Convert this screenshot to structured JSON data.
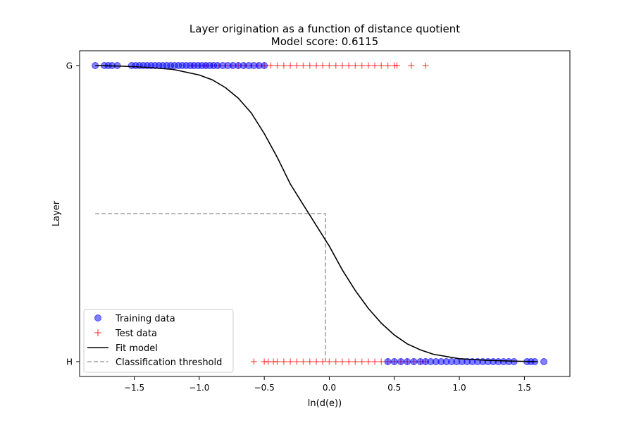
{
  "chart_data": {
    "type": "scatter",
    "title": "Layer origination as a function of distance quotient",
    "subtitle": "Model score: 0.6115",
    "xlabel": "ln(d(e))",
    "ylabel": "Layer",
    "xlim": [
      -1.92,
      1.85
    ],
    "ylim": [
      -0.05,
      1.05
    ],
    "xticks": [
      -1.5,
      -1.0,
      -0.5,
      0.0,
      0.5,
      1.0,
      1.5
    ],
    "xtick_labels": [
      "−1.5",
      "−1.0",
      "−0.5",
      "0.0",
      "0.5",
      "1.0",
      "1.5"
    ],
    "yticks": [
      1,
      0
    ],
    "ytick_labels": [
      "G",
      "H"
    ],
    "grid": false,
    "legend_placement": "lower-left",
    "colors": {
      "training": "#0000ff",
      "test": "#ff0000",
      "fit": "#000000",
      "threshold": "#a0a0a0"
    },
    "series": [
      {
        "name": "Training data",
        "marker": "circle",
        "points": [
          [
            -1.8,
            1
          ],
          [
            -1.73,
            1
          ],
          [
            -1.7,
            1
          ],
          [
            -1.67,
            1
          ],
          [
            -1.63,
            1
          ],
          [
            -1.52,
            1
          ],
          [
            -1.49,
            1
          ],
          [
            -1.46,
            1
          ],
          [
            -1.43,
            1
          ],
          [
            -1.4,
            1
          ],
          [
            -1.37,
            1
          ],
          [
            -1.34,
            1
          ],
          [
            -1.31,
            1
          ],
          [
            -1.28,
            1
          ],
          [
            -1.25,
            1
          ],
          [
            -1.22,
            1
          ],
          [
            -1.19,
            1
          ],
          [
            -1.16,
            1
          ],
          [
            -1.13,
            1
          ],
          [
            -1.1,
            1
          ],
          [
            -1.07,
            1
          ],
          [
            -1.04,
            1
          ],
          [
            -1.01,
            1
          ],
          [
            -0.98,
            1
          ],
          [
            -0.95,
            1
          ],
          [
            -0.92,
            1
          ],
          [
            -0.89,
            1
          ],
          [
            -0.86,
            1
          ],
          [
            -0.82,
            1
          ],
          [
            -0.78,
            1
          ],
          [
            -0.74,
            1
          ],
          [
            -0.7,
            1
          ],
          [
            -0.66,
            1
          ],
          [
            -0.62,
            1
          ],
          [
            -0.58,
            1
          ],
          [
            -0.54,
            1
          ],
          [
            -0.5,
            1
          ],
          [
            0.45,
            0
          ],
          [
            0.5,
            0
          ],
          [
            0.55,
            0
          ],
          [
            0.6,
            0
          ],
          [
            0.65,
            0
          ],
          [
            0.7,
            0
          ],
          [
            0.74,
            0
          ],
          [
            0.78,
            0
          ],
          [
            0.82,
            0
          ],
          [
            0.86,
            0
          ],
          [
            0.9,
            0
          ],
          [
            0.94,
            0
          ],
          [
            0.98,
            0
          ],
          [
            1.02,
            0
          ],
          [
            1.06,
            0
          ],
          [
            1.1,
            0
          ],
          [
            1.14,
            0
          ],
          [
            1.18,
            0
          ],
          [
            1.22,
            0
          ],
          [
            1.26,
            0
          ],
          [
            1.3,
            0
          ],
          [
            1.34,
            0
          ],
          [
            1.38,
            0
          ],
          [
            1.42,
            0
          ],
          [
            1.52,
            0
          ],
          [
            1.55,
            0
          ],
          [
            1.58,
            0
          ],
          [
            1.65,
            0
          ]
        ]
      },
      {
        "name": "Test data",
        "marker": "plus",
        "points": [
          [
            -1.05,
            1
          ],
          [
            -1.0,
            1
          ],
          [
            -0.95,
            1
          ],
          [
            -0.9,
            1
          ],
          [
            -0.85,
            1
          ],
          [
            -0.8,
            1
          ],
          [
            -0.75,
            1
          ],
          [
            -0.7,
            1
          ],
          [
            -0.65,
            1
          ],
          [
            -0.6,
            1
          ],
          [
            -0.55,
            1
          ],
          [
            -0.5,
            1
          ],
          [
            -0.45,
            1
          ],
          [
            -0.4,
            1
          ],
          [
            -0.35,
            1
          ],
          [
            -0.3,
            1
          ],
          [
            -0.25,
            1
          ],
          [
            -0.2,
            1
          ],
          [
            -0.15,
            1
          ],
          [
            -0.1,
            1
          ],
          [
            -0.05,
            1
          ],
          [
            0.0,
            1
          ],
          [
            0.05,
            1
          ],
          [
            0.1,
            1
          ],
          [
            0.15,
            1
          ],
          [
            0.2,
            1
          ],
          [
            0.25,
            1
          ],
          [
            0.3,
            1
          ],
          [
            0.35,
            1
          ],
          [
            0.4,
            1
          ],
          [
            0.45,
            1
          ],
          [
            0.5,
            1
          ],
          [
            0.52,
            1
          ],
          [
            0.63,
            1
          ],
          [
            0.74,
            1
          ],
          [
            -0.58,
            0
          ],
          [
            -0.5,
            0
          ],
          [
            -0.47,
            0
          ],
          [
            -0.43,
            0
          ],
          [
            -0.4,
            0
          ],
          [
            -0.35,
            0
          ],
          [
            -0.3,
            0
          ],
          [
            -0.25,
            0
          ],
          [
            -0.2,
            0
          ],
          [
            -0.15,
            0
          ],
          [
            -0.1,
            0
          ],
          [
            -0.05,
            0
          ],
          [
            0.0,
            0
          ],
          [
            0.05,
            0
          ],
          [
            0.1,
            0
          ],
          [
            0.15,
            0
          ],
          [
            0.2,
            0
          ],
          [
            0.25,
            0
          ],
          [
            0.3,
            0
          ],
          [
            0.35,
            0
          ],
          [
            0.4,
            0
          ],
          [
            0.45,
            0
          ],
          [
            0.5,
            0
          ],
          [
            0.55,
            0
          ],
          [
            0.6,
            0
          ],
          [
            0.65,
            0
          ],
          [
            0.7,
            0
          ],
          [
            0.74,
            0
          ]
        ]
      },
      {
        "name": "Fit model",
        "type": "line",
        "points": [
          [
            -1.8,
            1.0
          ],
          [
            -1.6,
            0.998
          ],
          [
            -1.4,
            0.994
          ],
          [
            -1.2,
            0.987
          ],
          [
            -1.0,
            0.968
          ],
          [
            -0.9,
            0.952
          ],
          [
            -0.8,
            0.926
          ],
          [
            -0.7,
            0.89
          ],
          [
            -0.6,
            0.84
          ],
          [
            -0.5,
            0.77
          ],
          [
            -0.4,
            0.69
          ],
          [
            -0.3,
            0.6
          ],
          [
            -0.2,
            0.53
          ],
          [
            -0.1,
            0.46
          ],
          [
            0.0,
            0.39
          ],
          [
            0.1,
            0.31
          ],
          [
            0.2,
            0.24
          ],
          [
            0.3,
            0.18
          ],
          [
            0.4,
            0.13
          ],
          [
            0.5,
            0.09
          ],
          [
            0.6,
            0.06
          ],
          [
            0.7,
            0.04
          ],
          [
            0.8,
            0.025
          ],
          [
            1.0,
            0.01
          ],
          [
            1.2,
            0.005
          ],
          [
            1.4,
            0.002
          ],
          [
            1.6,
            0.0
          ]
        ]
      }
    ],
    "threshold": {
      "name": "Classification threshold",
      "x": -0.03,
      "y": 0.5
    }
  }
}
